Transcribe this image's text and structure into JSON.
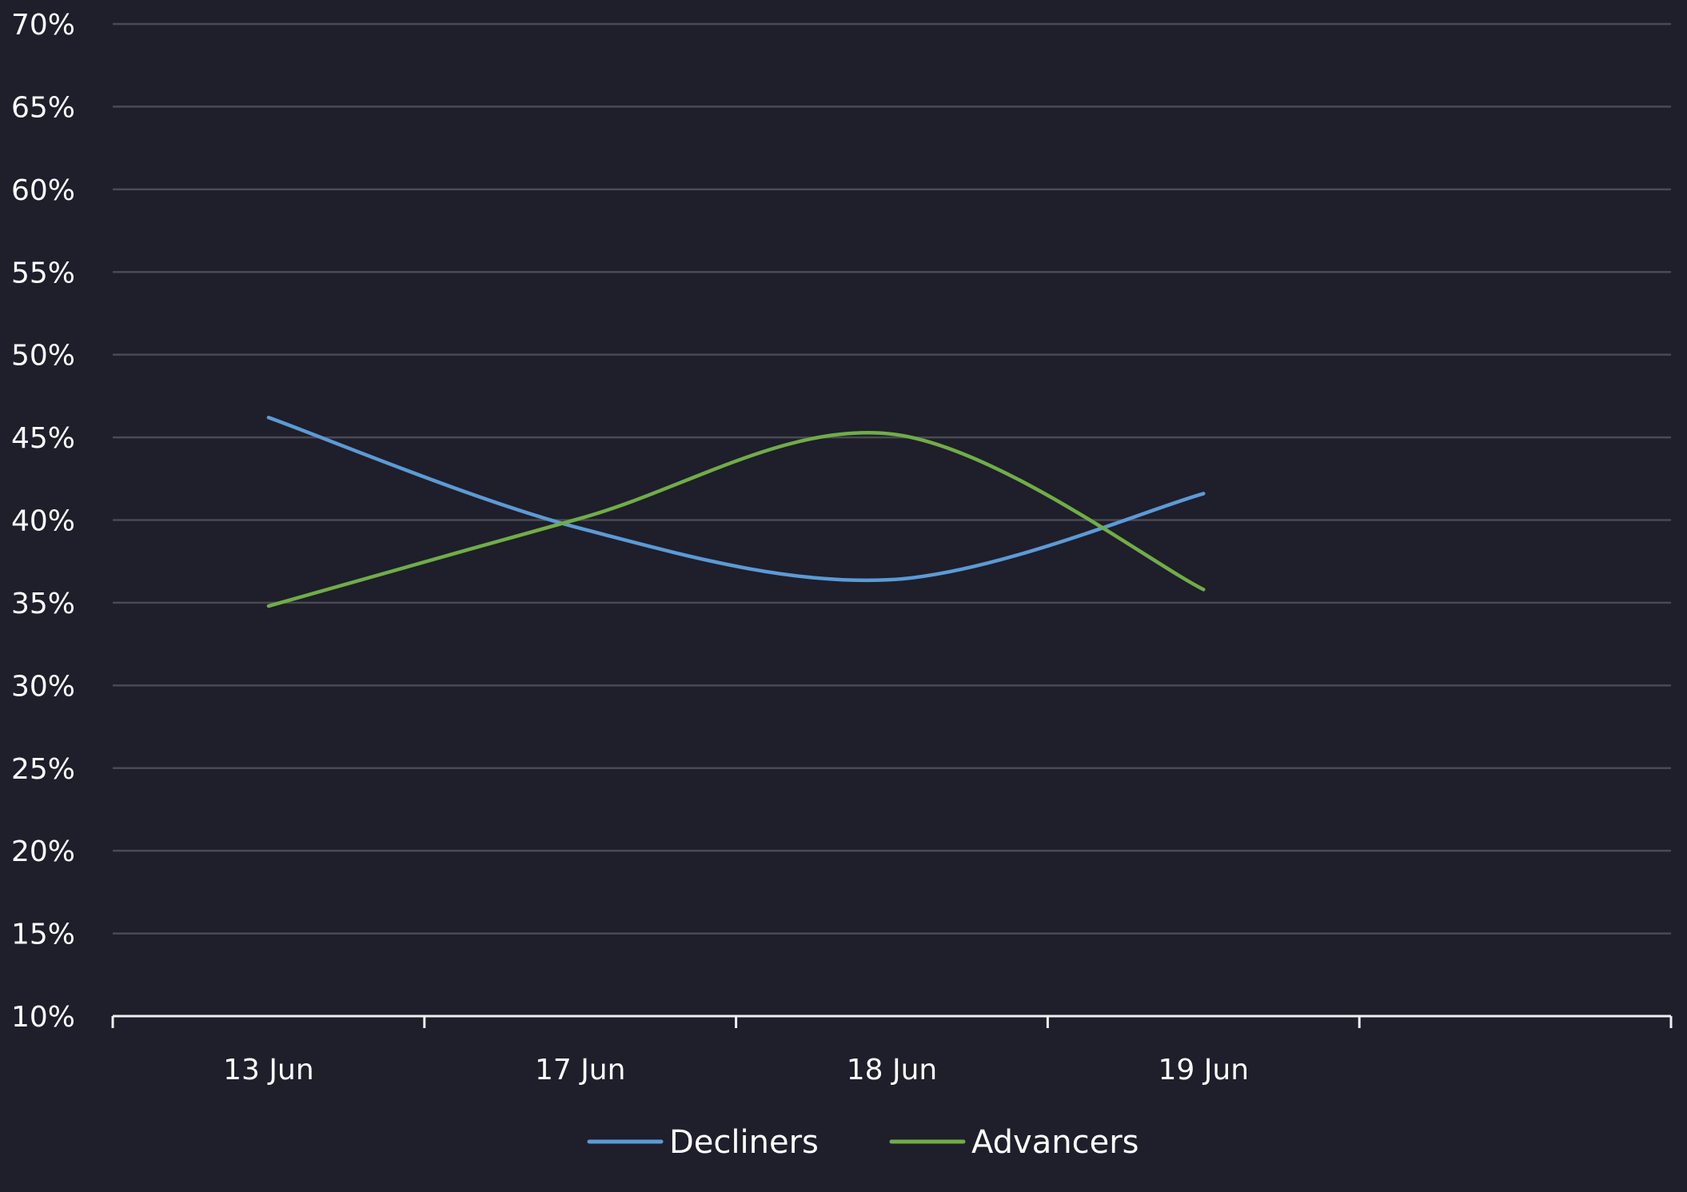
{
  "chart_data": {
    "type": "line",
    "categories": [
      "13 Jun",
      "17 Jun",
      "18 Jun",
      "19 Jun"
    ],
    "extra_category_slots": 1,
    "y_axis": {
      "min": 10,
      "max": 70,
      "step": 5,
      "tick_suffix": "%"
    },
    "grid": true,
    "legend_position": "bottom-center",
    "series": [
      {
        "name": "Decliners",
        "color": "#5b9bd5",
        "values": [
          46.2,
          39.5,
          36.4,
          41.6
        ]
      },
      {
        "name": "Advancers",
        "color": "#70ad47",
        "values": [
          34.8,
          40.1,
          45.2,
          35.8
        ]
      }
    ],
    "colors": {
      "background": "#1f1e2b",
      "gridline": "#4a4a52",
      "axis": "#f0f0f0",
      "text": "#ffffff"
    }
  }
}
